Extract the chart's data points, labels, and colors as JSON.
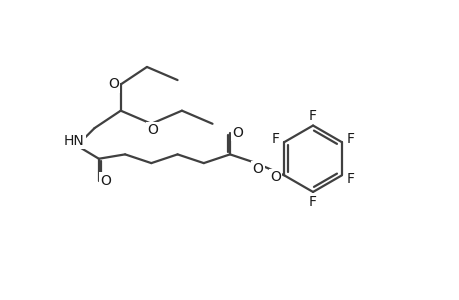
{
  "bg_color": "#ffffff",
  "line_color": "#404040",
  "text_color": "#1a1a1a",
  "bond_lw": 1.6,
  "font_size": 10.0,
  "figsize": [
    4.6,
    3.0
  ],
  "dpi": 100,
  "xlim": [
    -2,
    48
  ],
  "ylim": [
    -2,
    32
  ]
}
